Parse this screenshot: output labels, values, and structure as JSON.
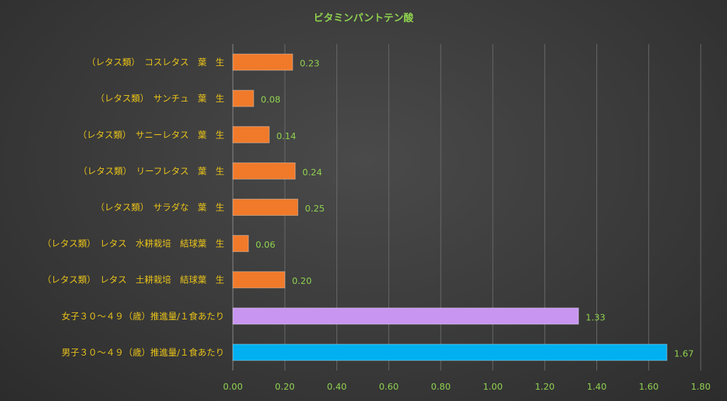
{
  "chart_data": {
    "type": "bar",
    "orientation": "horizontal",
    "title": "ビタミンパントテン酸",
    "xlabel": "",
    "ylabel": "",
    "xlim": [
      0,
      1.8
    ],
    "ticks": [
      "0.00",
      "0.20",
      "0.40",
      "0.60",
      "0.80",
      "1.00",
      "1.20",
      "1.40",
      "1.60",
      "1.80"
    ],
    "grid": true,
    "categories": [
      "（レタス類）　コスレタス　葉　生",
      "（レタス類）　サンチュ　葉　生",
      "（レタス類）　サニーレタス　葉　生",
      "（レタス類）　リーフレタス　葉　生",
      "（レタス類）　サラダな　葉　生",
      "（レタス類）　レタス　水耕栽培　結球葉　生",
      "（レタス類）　レタス　土耕栽培　結球葉　生",
      "女子３０～４９（歳）推進量/１食あたり",
      "男子３０～４９（歳）推進量/１食あたり"
    ],
    "values": [
      0.23,
      0.08,
      0.14,
      0.24,
      0.25,
      0.06,
      0.2,
      1.33,
      1.67
    ],
    "value_labels": [
      "0.23",
      "0.08",
      "0.14",
      "0.24",
      "0.25",
      "0.06",
      "0.20",
      "1.33",
      "1.67"
    ],
    "colors": [
      "#f07a2a",
      "#f07a2a",
      "#f07a2a",
      "#f07a2a",
      "#f07a2a",
      "#f07a2a",
      "#f07a2a",
      "#c896f0",
      "#00b0f0"
    ]
  }
}
